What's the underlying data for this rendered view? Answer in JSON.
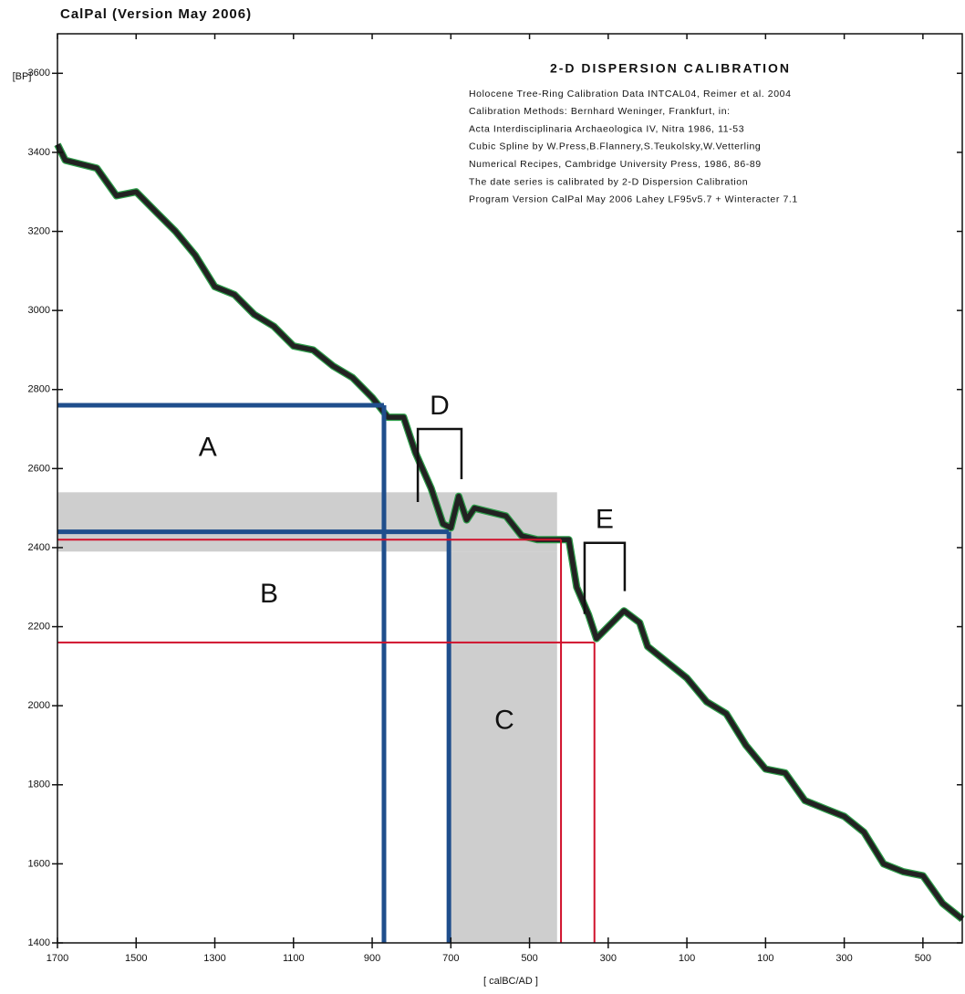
{
  "chart_data": {
    "type": "line",
    "header": "CalPal (Version May 2006)",
    "title": "2-D DISPERSION CALIBRATION",
    "info": [
      "Holocene Tree-Ring Calibration Data INTCAL04, Reimer et al. 2004",
      "Calibration Methods:  Bernhard Weninger, Frankfurt, in:",
      "Acta Interdisciplinaria Archaeologica IV, Nitra 1986, 11-53",
      "Cubic Spline by  W.Press,B.Flannery,S.Teukolsky,W.Vetterling",
      "Numerical Recipes, Cambridge University Press, 1986, 86-89",
      "The date series is calibrated by 2-D Dispersion Calibration",
      "Program Version CalPal May 2006 Lahey LF95v5.7 + Winteracter 7.1"
    ],
    "xlabel": "[ calBC/AD ]",
    "ylabel": "[BP]",
    "xlim": [
      -1700,
      600
    ],
    "ylim": [
      1400,
      3700
    ],
    "xticks": [
      {
        "value": -1700,
        "label": "1700"
      },
      {
        "value": -1500,
        "label": "1500"
      },
      {
        "value": -1300,
        "label": "1300"
      },
      {
        "value": -1100,
        "label": "1100"
      },
      {
        "value": -900,
        "label": "900"
      },
      {
        "value": -700,
        "label": "700"
      },
      {
        "value": -500,
        "label": "500"
      },
      {
        "value": -300,
        "label": "300"
      },
      {
        "value": -100,
        "label": "100"
      },
      100,
      300,
      500
    ],
    "yticks": [
      1400,
      1600,
      1800,
      2000,
      2200,
      2400,
      2600,
      2800,
      3000,
      3200,
      3400,
      3600
    ],
    "series": [
      {
        "name": "INTCAL04",
        "color": "#222222",
        "x": [
          -1700,
          -1680,
          -1600,
          -1550,
          -1500,
          -1450,
          -1400,
          -1350,
          -1300,
          -1250,
          -1200,
          -1150,
          -1100,
          -1050,
          -1000,
          -950,
          -900,
          -860,
          -820,
          -790,
          -750,
          -720,
          -700,
          -680,
          -660,
          -640,
          -600,
          -560,
          -520,
          -480,
          -440,
          -400,
          -380,
          -350,
          -330,
          -300,
          -260,
          -220,
          -200,
          -150,
          -100,
          -50,
          0,
          50,
          100,
          150,
          200,
          250,
          300,
          350,
          400,
          450,
          500,
          550,
          600
        ],
        "values": [
          3420,
          3380,
          3360,
          3290,
          3300,
          3250,
          3200,
          3140,
          3060,
          3040,
          2990,
          2960,
          2910,
          2900,
          2860,
          2830,
          2780,
          2730,
          2730,
          2640,
          2550,
          2460,
          2450,
          2530,
          2470,
          2500,
          2490,
          2480,
          2430,
          2420,
          2420,
          2420,
          2300,
          2230,
          2170,
          2200,
          2240,
          2210,
          2150,
          2110,
          2070,
          2010,
          1980,
          1900,
          1840,
          1830,
          1760,
          1740,
          1720,
          1680,
          1600,
          1580,
          1570,
          1500,
          1460
        ]
      }
    ],
    "bands": [
      {
        "color": "#b4b4b4",
        "x": [
          -1700,
          -430
        ],
        "y": [
          2390,
          2540
        ]
      },
      {
        "color": "#b4b4b4",
        "x": [
          -700,
          -430
        ],
        "y": [
          1400,
          2390
        ]
      }
    ],
    "guides": [
      {
        "color": "#1f4e8c",
        "x": -870,
        "y": 2760
      },
      {
        "color": "#1f4e8c",
        "x": -705,
        "y": 2440
      },
      {
        "color": "#d0112b",
        "x": -420,
        "y": 2420
      },
      {
        "color": "#d0112b",
        "x": -335,
        "y": 2160
      }
    ],
    "brackets": [
      {
        "text": "D",
        "x": [
          -784,
          -673
        ],
        "y": [
          2573,
          2700
        ]
      },
      {
        "text": "E",
        "x": [
          -360,
          -258
        ],
        "y": [
          2290,
          2412
        ]
      }
    ],
    "annotations": [
      {
        "text": "A",
        "x": -1318,
        "y": 2650
      },
      {
        "text": "B",
        "x": -1162,
        "y": 2280
      },
      {
        "text": "C",
        "x": -564,
        "y": 1960
      }
    ]
  }
}
